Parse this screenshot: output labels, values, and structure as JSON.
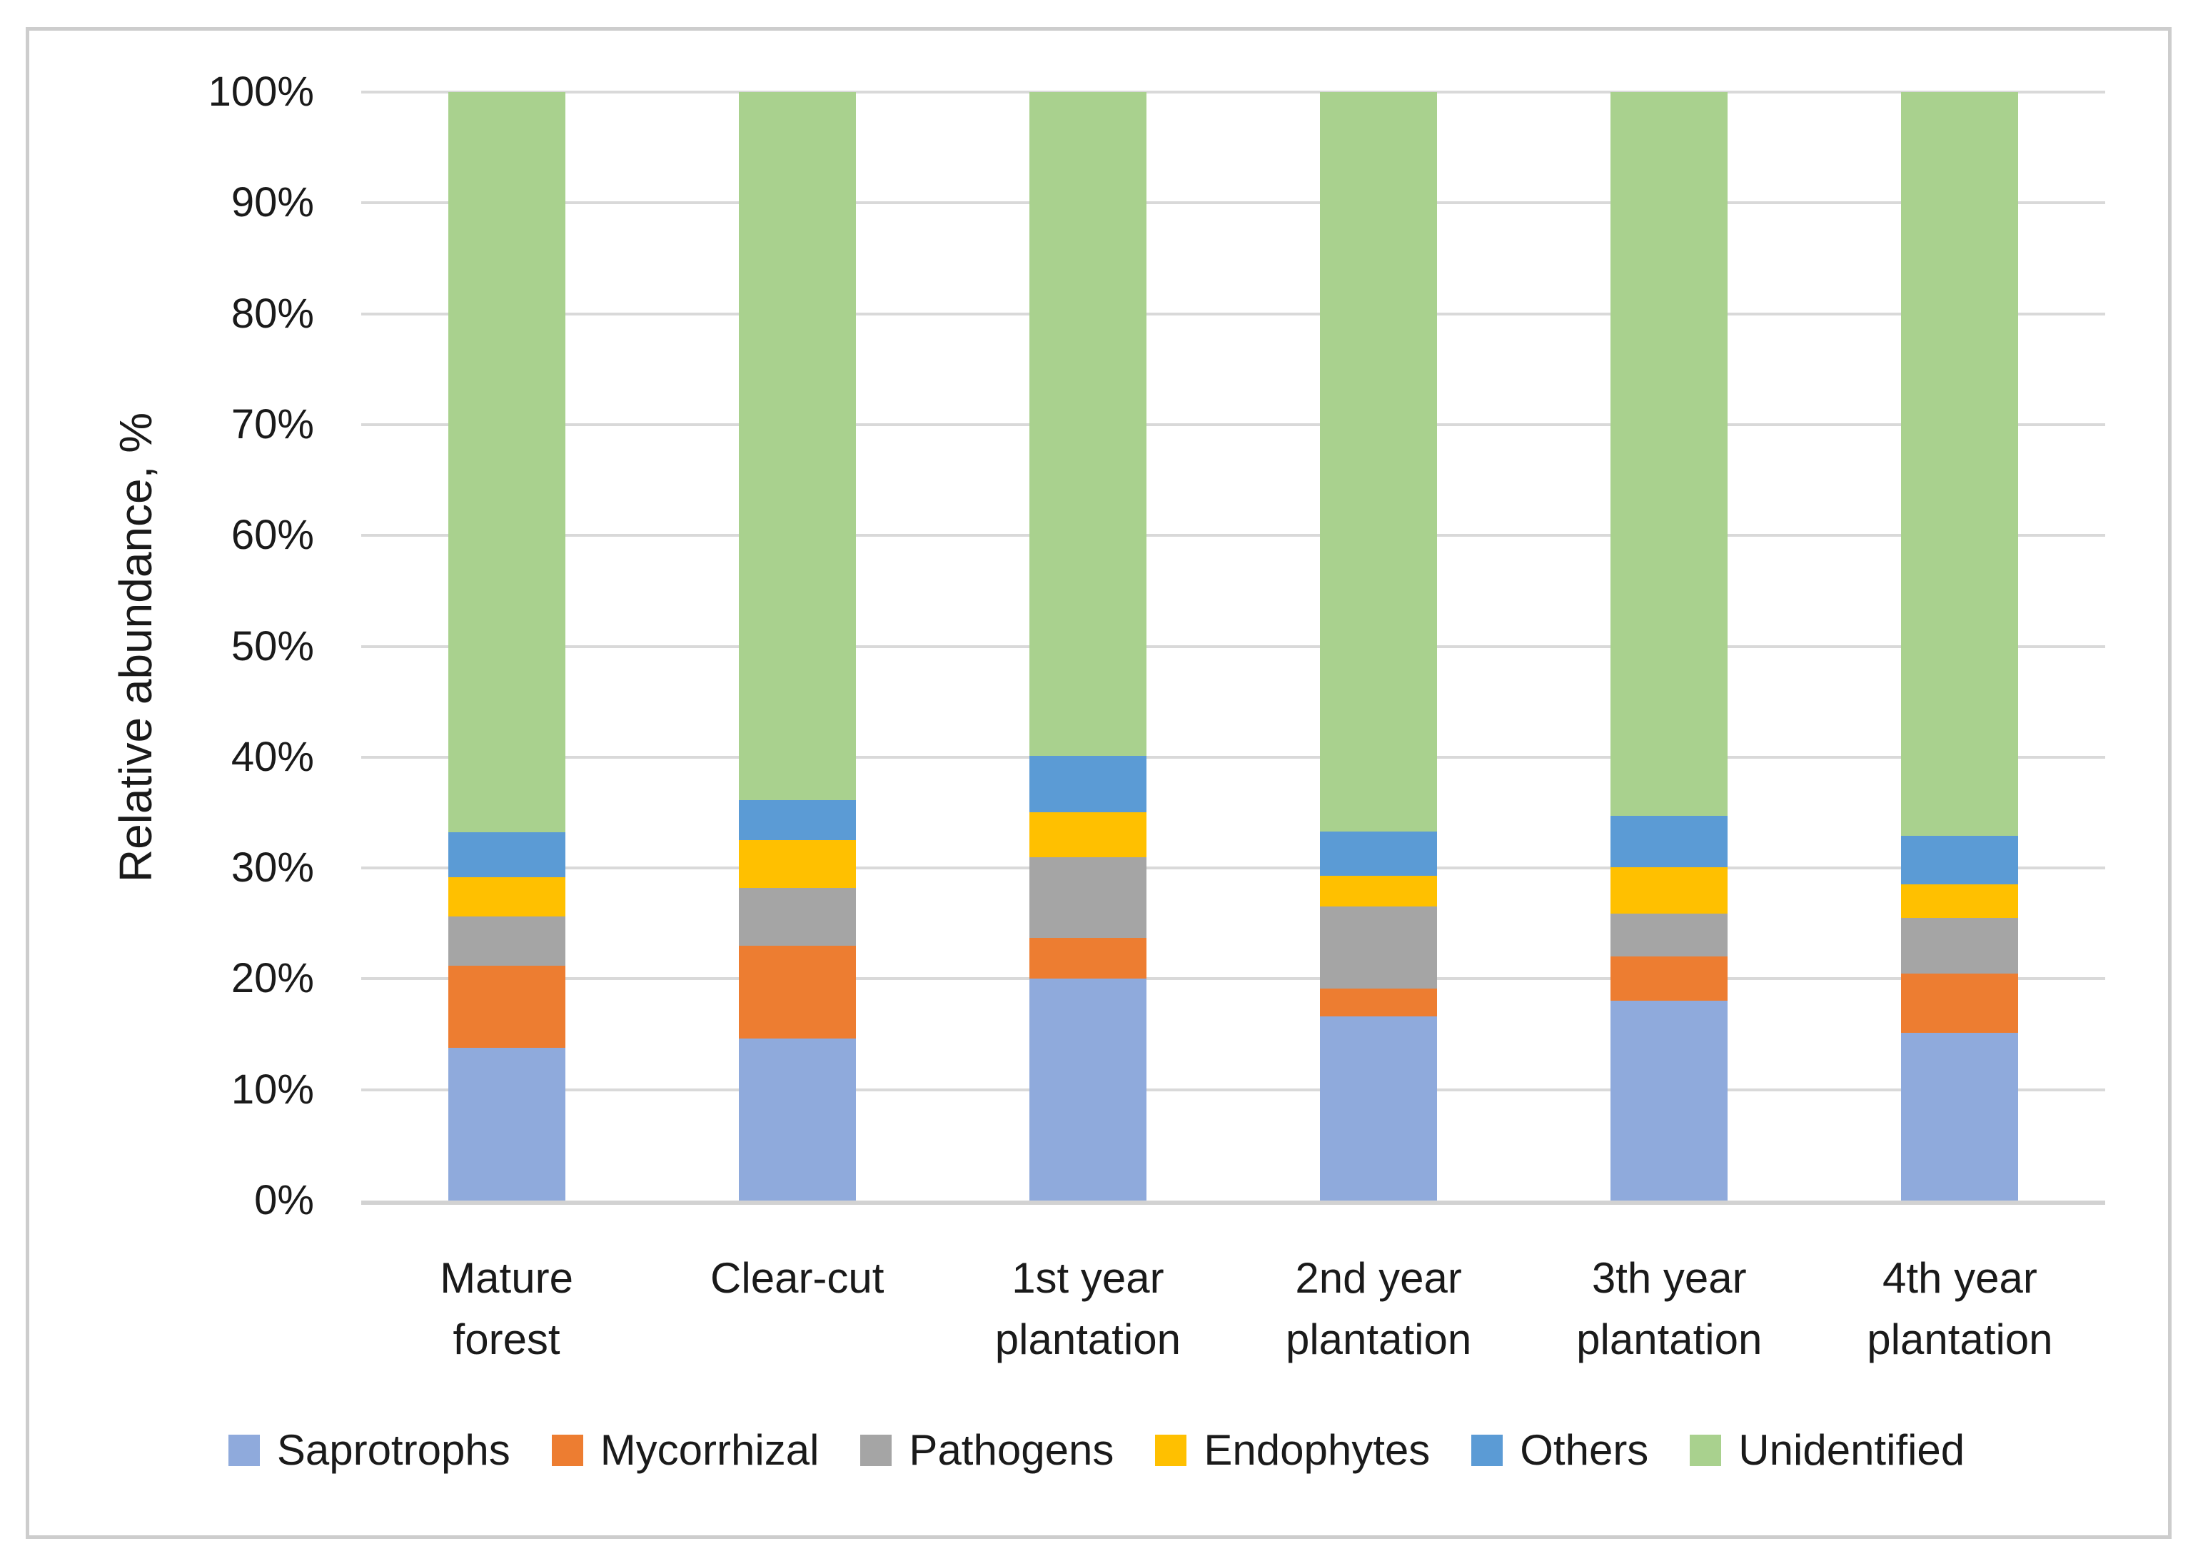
{
  "figure": {
    "border_color": "#cdcdcd",
    "background_color": "#ffffff"
  },
  "chart_data": {
    "type": "bar",
    "stacked": true,
    "title": "",
    "xlabel": "",
    "ylabel": "Relative abundance, %",
    "ylim": [
      0,
      100
    ],
    "ytick_step": 10,
    "ytick_labels": [
      "0%",
      "10%",
      "20%",
      "30%",
      "40%",
      "50%",
      "60%",
      "70%",
      "80%",
      "90%",
      "100%"
    ],
    "grid": true,
    "gridline_color": "#d9d9d9",
    "axis_line_color": "#d2d2d2",
    "legend_position": "bottom",
    "categories": [
      "Mature forest",
      "Clear-cut",
      "1st year plantation",
      "2nd year plantation",
      "3th year plantation",
      "4th year plantation"
    ],
    "category_lines": [
      [
        "Mature",
        "forest"
      ],
      [
        "Clear-cut"
      ],
      [
        "1st year",
        "plantation"
      ],
      [
        "2nd year",
        "plantation"
      ],
      [
        "3th year",
        "plantation"
      ],
      [
        "4th year",
        "plantation"
      ]
    ],
    "series": [
      {
        "name": "Saprotrophs",
        "color": "#8faadc",
        "values": [
          13.8,
          14.6,
          20.0,
          16.6,
          18.0,
          15.1
        ]
      },
      {
        "name": "Mycorrhizal",
        "color": "#ed7d31",
        "values": [
          7.4,
          8.4,
          3.7,
          2.5,
          4.0,
          5.4
        ]
      },
      {
        "name": "Pathogens",
        "color": "#a5a5a5",
        "values": [
          4.4,
          5.2,
          7.3,
          7.4,
          3.9,
          5.0
        ]
      },
      {
        "name": "Endophytes",
        "color": "#ffc000",
        "values": [
          3.6,
          4.3,
          4.0,
          2.8,
          4.2,
          3.0
        ]
      },
      {
        "name": "Others",
        "color": "#5b9bd5",
        "values": [
          4.0,
          3.6,
          5.1,
          4.0,
          4.6,
          4.4
        ]
      },
      {
        "name": "Unidentified",
        "color": "#a9d18e",
        "values": [
          66.8,
          63.9,
          59.9,
          66.7,
          65.3,
          67.1
        ]
      }
    ]
  }
}
